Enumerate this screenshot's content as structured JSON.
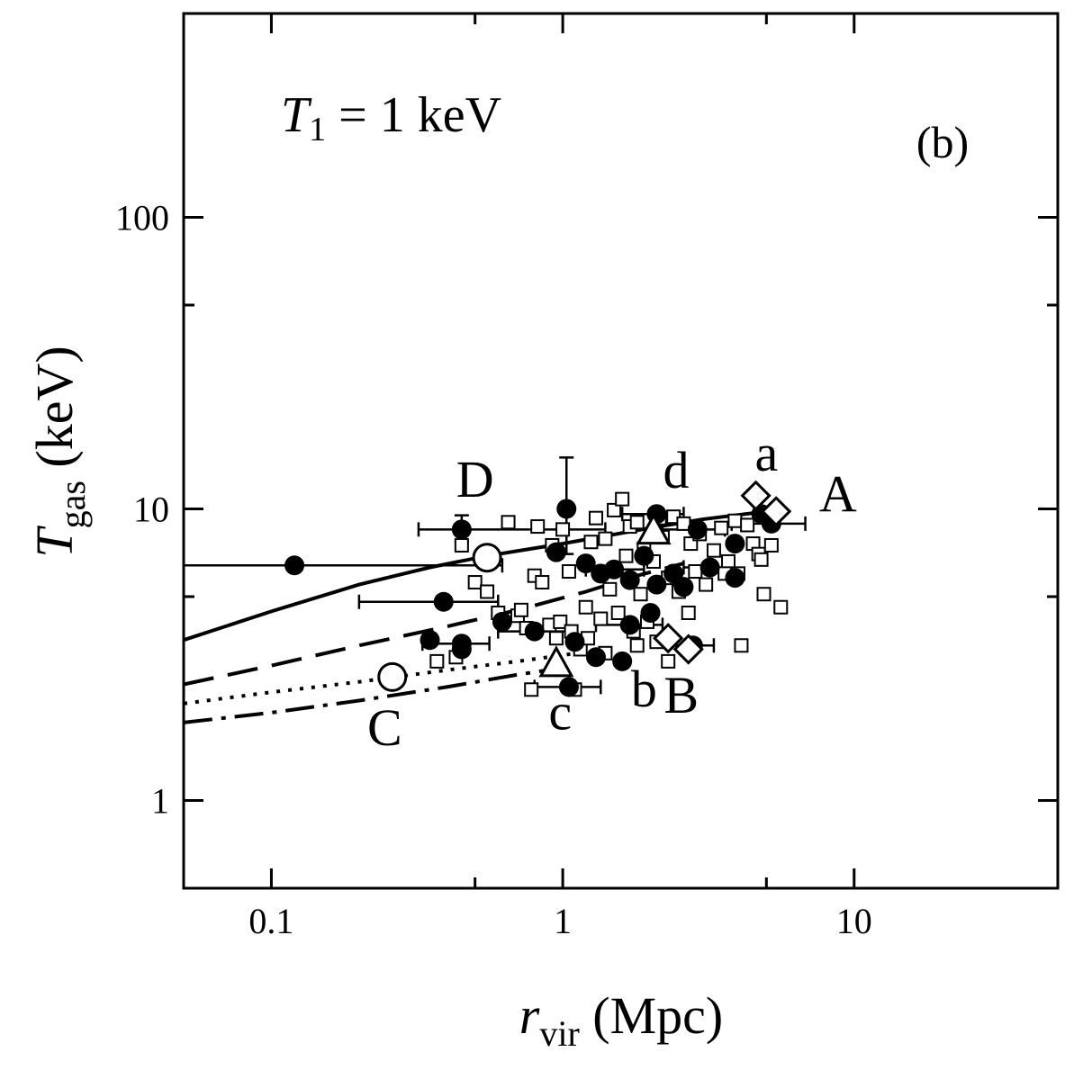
{
  "chart_data": {
    "type": "scatter",
    "panel_label": "(b)",
    "annotation": {
      "symbol": "T",
      "subscript": "1",
      "text": " = 1 keV"
    },
    "xlabel": {
      "symbol": "r",
      "subscript": "vir",
      "unit": " (Mpc)"
    },
    "ylabel": {
      "symbol": "T",
      "subscript": "gas",
      "unit": " (keV)"
    },
    "xscale": "log",
    "yscale": "log",
    "xlim": [
      0.05,
      50
    ],
    "ylim": [
      0.5,
      500
    ],
    "xticks": [
      {
        "v": 0.1,
        "label": "0.1"
      },
      {
        "v": 1,
        "label": "1"
      },
      {
        "v": 10,
        "label": "10"
      }
    ],
    "yticks": [
      {
        "v": 1,
        "label": "1"
      },
      {
        "v": 10,
        "label": "10"
      },
      {
        "v": 100,
        "label": "100"
      }
    ],
    "curves": [
      {
        "name": "solid",
        "dash": "",
        "points": [
          [
            0.05,
            3.55
          ],
          [
            0.1,
            4.45
          ],
          [
            0.2,
            5.5
          ],
          [
            0.35,
            6.3
          ],
          [
            0.55,
            6.9
          ],
          [
            1.0,
            7.6
          ],
          [
            2.0,
            8.6
          ],
          [
            3.0,
            9.2
          ],
          [
            5.0,
            9.8
          ]
        ]
      },
      {
        "name": "dashed",
        "dash": "34 16",
        "points": [
          [
            0.05,
            2.5
          ],
          [
            0.1,
            2.9
          ],
          [
            0.2,
            3.4
          ],
          [
            0.4,
            3.95
          ],
          [
            0.7,
            4.5
          ],
          [
            1.2,
            5.2
          ],
          [
            1.8,
            5.9
          ],
          [
            2.6,
            6.5
          ]
        ]
      },
      {
        "name": "dotted",
        "dash": "4 9",
        "points": [
          [
            0.05,
            2.15
          ],
          [
            0.1,
            2.35
          ],
          [
            0.2,
            2.55
          ],
          [
            0.4,
            2.8
          ],
          [
            0.7,
            3.0
          ],
          [
            1.0,
            3.15
          ],
          [
            1.4,
            3.3
          ]
        ]
      },
      {
        "name": "dash-dot",
        "dash": "32 10 5 10",
        "points": [
          [
            0.05,
            1.85
          ],
          [
            0.1,
            2.0
          ],
          [
            0.2,
            2.2
          ],
          [
            0.4,
            2.45
          ],
          [
            0.7,
            2.7
          ],
          [
            1.0,
            2.85
          ]
        ]
      }
    ],
    "bold_series": [
      {
        "name": "filled-circles",
        "marker": "filled-circle",
        "points": [
          [
            0.12,
            6.4
          ],
          [
            0.45,
            8.5
          ],
          [
            0.39,
            4.8
          ],
          [
            0.35,
            3.55
          ],
          [
            0.45,
            3.45
          ],
          [
            0.45,
            3.3
          ],
          [
            0.62,
            4.1
          ],
          [
            0.8,
            3.8
          ],
          [
            0.95,
            7.1
          ],
          [
            1.03,
            10.0
          ],
          [
            1.1,
            3.5
          ],
          [
            1.2,
            6.5
          ],
          [
            1.3,
            3.1
          ],
          [
            1.35,
            6.0
          ],
          [
            1.5,
            6.2
          ],
          [
            1.6,
            3.0
          ],
          [
            1.7,
            5.7
          ],
          [
            1.9,
            6.9
          ],
          [
            2.0,
            4.4
          ],
          [
            2.1,
            9.6
          ],
          [
            2.1,
            5.5
          ],
          [
            2.4,
            6.0
          ],
          [
            2.6,
            5.4
          ],
          [
            2.8,
            3.4
          ],
          [
            2.9,
            8.5
          ],
          [
            3.2,
            6.3
          ],
          [
            3.9,
            7.6
          ],
          [
            3.9,
            5.8
          ],
          [
            4.8,
            9.6
          ],
          [
            5.2,
            8.9
          ],
          [
            1.05,
            2.45
          ],
          [
            1.7,
            4.0
          ]
        ]
      },
      {
        "name": "open-circles",
        "marker": "open-circle",
        "points": [
          [
            0.55,
            6.8
          ],
          [
            0.26,
            2.65
          ]
        ]
      },
      {
        "name": "open-triangles",
        "marker": "open-triangle",
        "points": [
          [
            2.05,
            8.4
          ],
          [
            0.95,
            2.95
          ]
        ]
      },
      {
        "name": "open-diamonds",
        "marker": "open-diamond",
        "points": [
          [
            4.6,
            11.1
          ],
          [
            5.4,
            9.8
          ],
          [
            2.3,
            3.6
          ],
          [
            2.7,
            3.3
          ]
        ]
      }
    ],
    "open_squares": [
      [
        0.45,
        7.5
      ],
      [
        0.5,
        5.6
      ],
      [
        0.55,
        5.2
      ],
      [
        0.6,
        4.4
      ],
      [
        0.65,
        9.0
      ],
      [
        0.7,
        4.3
      ],
      [
        0.75,
        3.9
      ],
      [
        0.78,
        2.4
      ],
      [
        0.8,
        5.9
      ],
      [
        0.82,
        8.7
      ],
      [
        0.85,
        5.6
      ],
      [
        0.9,
        4.0
      ],
      [
        0.92,
        7.5
      ],
      [
        0.95,
        3.6
      ],
      [
        0.98,
        4.1
      ],
      [
        1.0,
        8.5
      ],
      [
        1.05,
        6.1
      ],
      [
        1.1,
        2.4
      ],
      [
        1.15,
        3.3
      ],
      [
        1.2,
        4.6
      ],
      [
        1.25,
        7.7
      ],
      [
        1.3,
        9.3
      ],
      [
        1.35,
        4.2
      ],
      [
        1.4,
        3.2
      ],
      [
        1.45,
        5.3
      ],
      [
        1.5,
        9.9
      ],
      [
        1.55,
        4.4
      ],
      [
        1.6,
        10.8
      ],
      [
        1.65,
        6.9
      ],
      [
        1.7,
        8.7
      ],
      [
        1.75,
        3.8
      ],
      [
        1.8,
        9.0
      ],
      [
        1.85,
        5.1
      ],
      [
        1.9,
        7.3
      ],
      [
        1.95,
        4.1
      ],
      [
        2.05,
        6.6
      ],
      [
        2.1,
        3.5
      ],
      [
        2.15,
        9.3
      ],
      [
        2.2,
        8.0
      ],
      [
        2.3,
        5.8
      ],
      [
        2.4,
        9.4
      ],
      [
        2.5,
        5.2
      ],
      [
        2.6,
        8.9
      ],
      [
        2.7,
        4.4
      ],
      [
        2.75,
        7.6
      ],
      [
        2.85,
        6.1
      ],
      [
        2.95,
        8.2
      ],
      [
        3.1,
        5.5
      ],
      [
        3.3,
        7.2
      ],
      [
        3.5,
        8.6
      ],
      [
        3.7,
        6.6
      ],
      [
        3.9,
        9.1
      ],
      [
        4.0,
        6.0
      ],
      [
        4.1,
        3.4
      ],
      [
        4.3,
        8.8
      ],
      [
        4.5,
        7.6
      ],
      [
        4.7,
        7.0
      ],
      [
        4.8,
        6.7
      ],
      [
        4.9,
        5.1
      ],
      [
        5.2,
        7.5
      ],
      [
        5.6,
        4.6
      ],
      [
        0.72,
        4.5
      ],
      [
        1.07,
        3.8
      ],
      [
        1.22,
        3.6
      ],
      [
        1.4,
        7.9
      ],
      [
        1.8,
        3.4
      ],
      [
        2.3,
        3.0
      ],
      [
        0.43,
        3.1
      ],
      [
        0.37,
        3.0
      ],
      [
        3.6,
        6.0
      ]
    ],
    "error_bars": [
      {
        "x": 0.12,
        "y": 6.4,
        "xlo": 0.05,
        "xhi": 0.62
      },
      {
        "x": 0.45,
        "y": 8.5,
        "xlo": 0.32,
        "xhi": 1.4,
        "ylo": 7.7,
        "yhi": 9.5
      },
      {
        "x": 0.39,
        "y": 4.8,
        "xlo": 0.2,
        "xhi": 0.6
      },
      {
        "x": 0.45,
        "y": 3.45,
        "xlo": 0.33,
        "xhi": 0.56
      },
      {
        "x": 0.8,
        "y": 3.8,
        "xlo": 0.6,
        "xhi": 1.05
      },
      {
        "x": 1.03,
        "y": 10.0,
        "ylo": 7.0,
        "yhi": 15.0
      },
      {
        "x": 1.05,
        "y": 2.45,
        "xlo": 0.8,
        "xhi": 1.35
      },
      {
        "x": 1.5,
        "y": 6.2,
        "xlo": 1.2,
        "xhi": 1.9
      },
      {
        "x": 2.1,
        "y": 9.6,
        "xlo": 1.6,
        "xhi": 2.6
      },
      {
        "x": 1.7,
        "y": 4.0,
        "xlo": 1.3,
        "xhi": 2.2
      },
      {
        "x": 2.8,
        "y": 3.4,
        "xlo": 2.3,
        "xhi": 3.3
      },
      {
        "x": 2.9,
        "y": 8.5,
        "xlo": 2.2,
        "xhi": 3.6
      },
      {
        "x": 5.2,
        "y": 8.9,
        "xlo": 3.8,
        "xhi": 6.8
      },
      {
        "x": 3.2,
        "y": 6.3,
        "xlo": 2.6,
        "xhi": 3.8
      }
    ],
    "point_labels": [
      {
        "text": "A",
        "x": 8.8,
        "y": 9.8
      },
      {
        "text": "B",
        "x": 2.55,
        "y": 2.0
      },
      {
        "text": "C",
        "x": 0.245,
        "y": 1.55
      },
      {
        "text": "D",
        "x": 0.5,
        "y": 11.0
      },
      {
        "text": "a",
        "x": 5.0,
        "y": 13.5
      },
      {
        "text": "b",
        "x": 1.9,
        "y": 2.1
      },
      {
        "text": "c",
        "x": 0.98,
        "y": 1.75
      },
      {
        "text": "d",
        "x": 2.45,
        "y": 11.8
      }
    ]
  }
}
